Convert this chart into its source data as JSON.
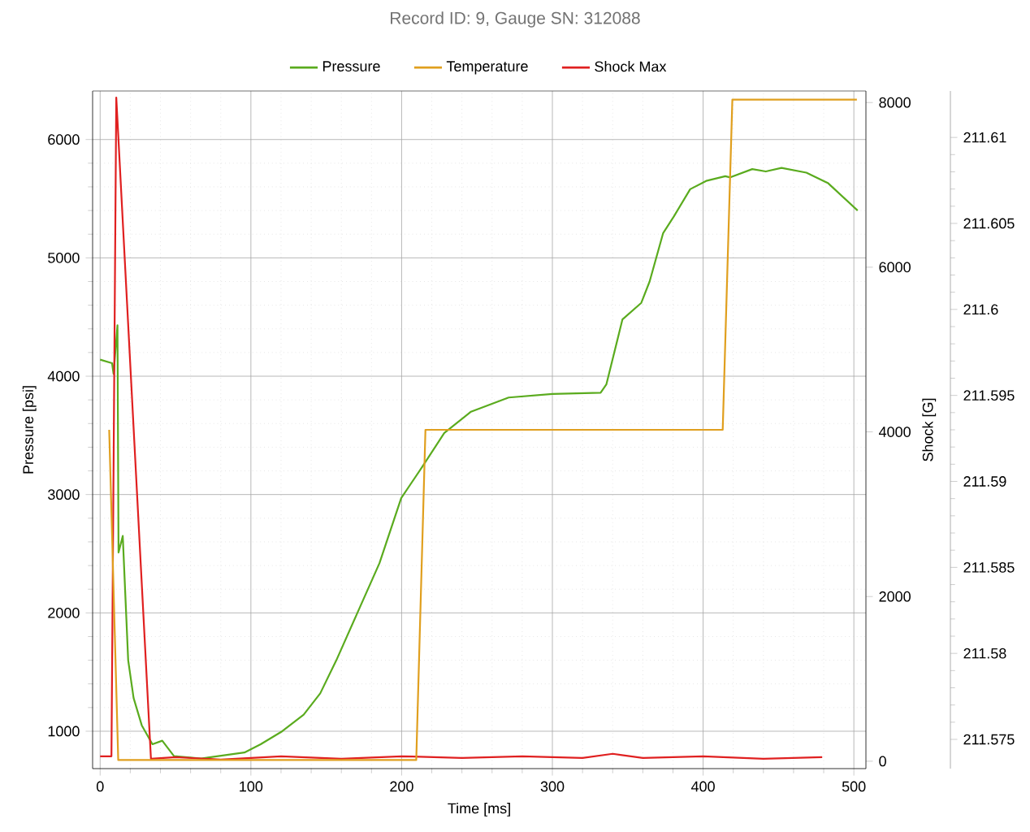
{
  "chart_data": {
    "type": "line",
    "title": "Record ID: 9, Gauge SN: 312088",
    "xlabel": "Time [ms]",
    "ylabel": "Pressure [psi]",
    "y2label": "Shock [G]",
    "xlim": [
      -5,
      508
    ],
    "xticks": [
      0,
      100,
      200,
      300,
      400,
      500
    ],
    "ylim": [
      684,
      6410
    ],
    "yticks": [
      1000,
      2000,
      3000,
      4000,
      5000,
      6000
    ],
    "y2lim": [
      -90,
      8140
    ],
    "y2ticks": [
      0,
      2000,
      4000,
      6000,
      8000
    ],
    "y3lim": [
      211.5733,
      211.6127
    ],
    "y3ticks": [
      211.575,
      211.58,
      211.585,
      211.59,
      211.595,
      211.6,
      211.605,
      211.61
    ],
    "grid": true,
    "legend": "top",
    "marker": "none",
    "line_style": "solid",
    "series": [
      {
        "name": "Pressure",
        "color": "#5aab1e",
        "x": [
          0,
          7.9,
          8.9,
          11.5,
          12.2,
          15,
          18.6,
          22.2,
          27.6,
          34.7,
          41.2,
          49,
          67,
          95.7,
          106.5,
          120.8,
          135,
          146,
          156.7,
          171,
          185.3,
          199.7,
          214,
          228.3,
          246,
          271,
          300,
          332,
          335.8,
          346.5,
          359,
          364.5,
          373.5,
          380.6,
          391.4,
          402,
          414.7,
          418,
          432.6,
          441.6,
          452,
          468.5,
          483,
          502.5
        ],
        "values": [
          4140,
          4110,
          4020,
          4430,
          2510,
          2650,
          1600,
          1280,
          1050,
          890,
          920,
          790,
          770,
          820,
          890,
          1000,
          1140,
          1320,
          1600,
          2010,
          2420,
          2970,
          3240,
          3520,
          3700,
          3820,
          3850,
          3860,
          3930,
          4480,
          4620,
          4800,
          5210,
          5350,
          5580,
          5650,
          5690,
          5680,
          5750,
          5730,
          5760,
          5720,
          5630,
          5400
        ]
      },
      {
        "name": "Temperature",
        "color": "#e09f1e",
        "axis": "y3",
        "x": [
          6,
          12,
          209.7,
          215.8,
          413,
          419.4,
          502
        ],
        "values": [
          211.593,
          211.5738,
          211.5738,
          211.593,
          211.593,
          211.6122,
          211.6122
        ]
      },
      {
        "name": "Shock Max",
        "color": "#e02020",
        "axis": "y2",
        "x": [
          0,
          7.5,
          10.7,
          33.7,
          50,
          80,
          120,
          160,
          200,
          240,
          280,
          320,
          340,
          360,
          400,
          440,
          479
        ],
        "values": [
          60,
          60,
          8060,
          30,
          50,
          20,
          60,
          30,
          60,
          40,
          60,
          40,
          90,
          40,
          60,
          30,
          50
        ]
      }
    ]
  }
}
